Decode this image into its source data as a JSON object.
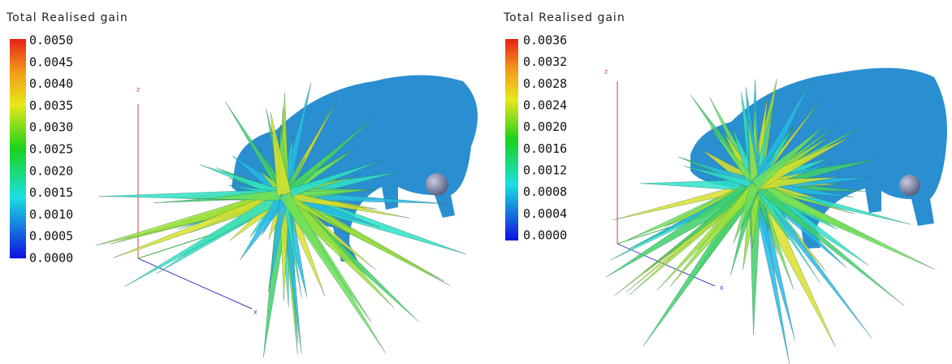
{
  "panels": [
    {
      "title": "Total Realised gain",
      "colorbar_labels": [
        "0.0050",
        "0.0045",
        "0.0040",
        "0.0035",
        "0.0030",
        "0.0025",
        "0.0020",
        "0.0015",
        "0.0010",
        "0.0005",
        "0.0000"
      ],
      "axis_labels": [
        "z",
        "x"
      ]
    },
    {
      "title": "Total Realised gain",
      "colorbar_labels": [
        "0.0036",
        "0.0032",
        "0.0028",
        "0.0024",
        "0.0020",
        "0.0016",
        "0.0012",
        "0.0008",
        "0.0004",
        "0.0000"
      ],
      "axis_labels": [
        "z",
        "x"
      ]
    }
  ]
}
